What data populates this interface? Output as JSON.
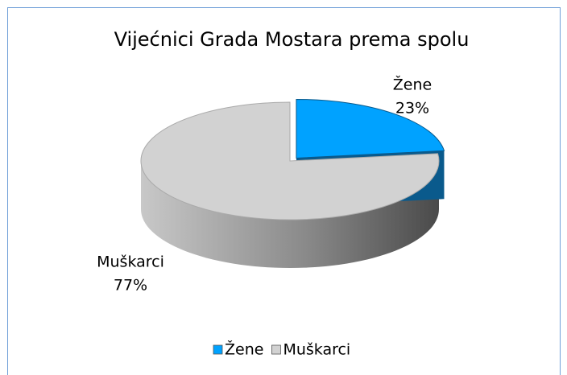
{
  "chart_data": {
    "type": "pie",
    "title": "Vijećnici Grada Mostara prema spolu",
    "categories": [
      "Žene",
      "Muškarci"
    ],
    "values": [
      23,
      77
    ],
    "value_labels": [
      "23%",
      "77%"
    ],
    "colors": [
      "#00a2ff",
      "#d2d2d2"
    ],
    "legend": "bottom"
  }
}
